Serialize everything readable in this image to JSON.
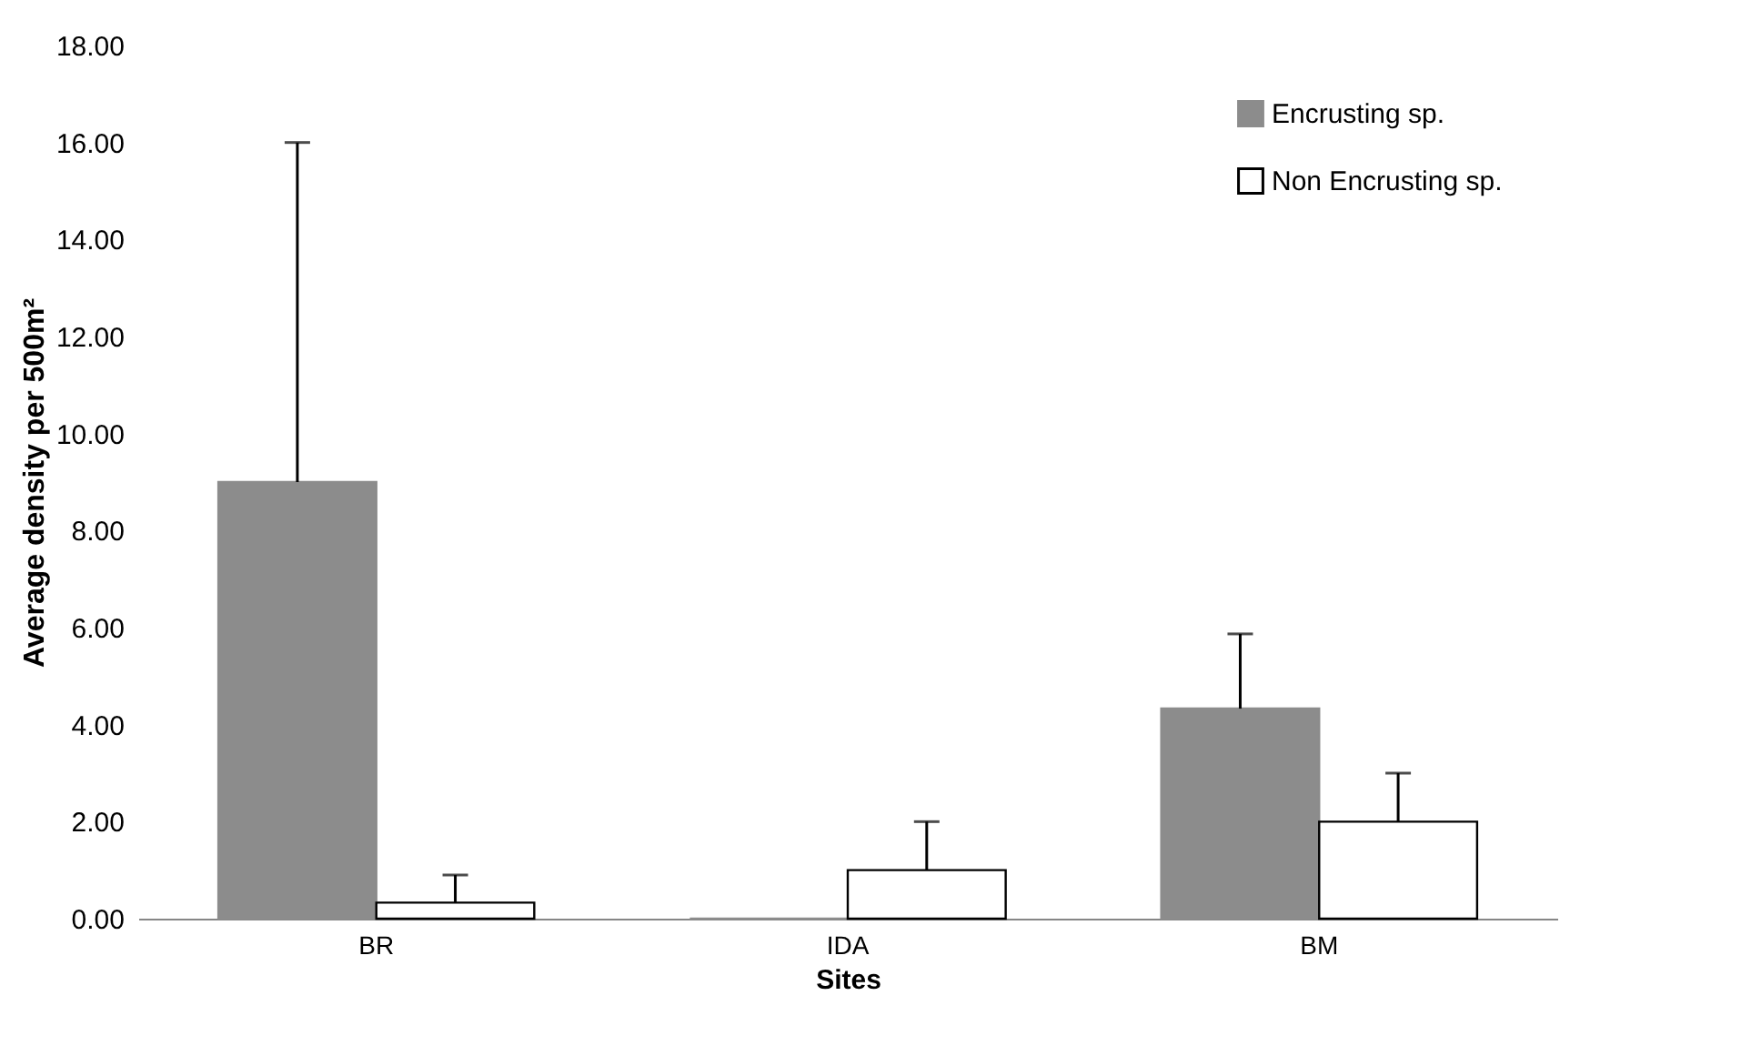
{
  "chart_data": {
    "type": "bar",
    "xlabel": "Sites",
    "ylabel": "Average density per 500m²",
    "categories": [
      "BR",
      "IDA",
      "BM"
    ],
    "series": [
      {
        "name": "Encrusting sp.",
        "color": "#8c8c8c",
        "values": [
          9.0,
          0,
          4.33
        ],
        "errors": [
          [
            9.0,
            16.0
          ],
          null,
          [
            4.33,
            5.87
          ]
        ]
      },
      {
        "name": "Non Encrusting sp.",
        "color": "#ffffff",
        "values": [
          0.33,
          1.0,
          2.0
        ],
        "errors": [
          [
            0.33,
            0.9
          ],
          [
            1.0,
            2.0
          ],
          [
            2.0,
            3.0
          ]
        ]
      }
    ],
    "ylim": [
      0,
      18
    ],
    "yticks": [
      {
        "value": 0,
        "label": "0.00"
      },
      {
        "value": 2,
        "label": "2.00"
      },
      {
        "value": 4,
        "label": "4.00"
      },
      {
        "value": 6,
        "label": "6.00"
      },
      {
        "value": 8,
        "label": "8.00"
      },
      {
        "value": 10,
        "label": "10.00"
      },
      {
        "value": 12,
        "label": "12.00"
      },
      {
        "value": 14,
        "label": "14.00"
      },
      {
        "value": 16,
        "label": "16.00"
      },
      {
        "value": 18,
        "label": "18.00"
      }
    ],
    "grid": false,
    "legend": "top right"
  }
}
